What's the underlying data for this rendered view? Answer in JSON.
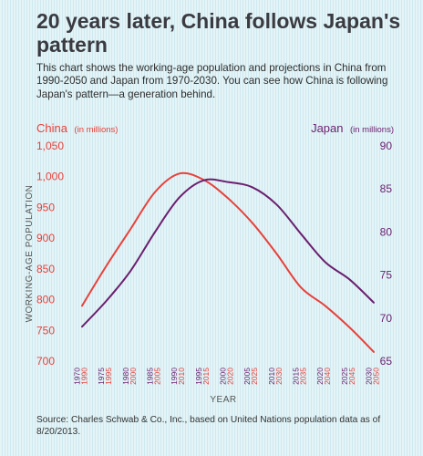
{
  "header": {
    "title": "20 years later, China follows Japan's pattern",
    "subtitle": "This chart shows the working-age population and projections in China from 1990-2050 and Japan from 1970-2030. You can see how China is following Japan's pattern—a generation behind."
  },
  "footer": {
    "source": "Source: Charles Schwab & Co., Inc., based on United Nations population data as of 8/20/2013."
  },
  "colors": {
    "china": "#e8413b",
    "japan": "#6b1f6e",
    "axis_text": "#555555"
  },
  "chart_data": {
    "type": "line",
    "xlabel": "YEAR",
    "ylabel": "WORKING-AGE POPULATION",
    "left_axis": {
      "name": "China",
      "unit": "(in millions)",
      "ticks": [
        "1,050",
        "1,000",
        "950",
        "900",
        "850",
        "800",
        "750",
        "700"
      ],
      "ylim": [
        700,
        1050
      ]
    },
    "right_axis": {
      "name": "Japan",
      "unit": "(in millions)",
      "ticks": [
        "90",
        "85",
        "80",
        "75",
        "70",
        "65"
      ],
      "ylim": [
        65,
        90
      ]
    },
    "x_ticks_japan": [
      "1970",
      "1975",
      "1980",
      "1985",
      "1990",
      "1995",
      "2000",
      "2005",
      "2010",
      "2015",
      "2020",
      "2025",
      "2030"
    ],
    "x_ticks_china": [
      "1990",
      "1995",
      "2000",
      "2005",
      "2010",
      "2015",
      "2020",
      "2025",
      "2030",
      "2035",
      "2040",
      "2045",
      "2050"
    ],
    "series": [
      {
        "name": "China",
        "axis": "left",
        "x": [
          1990,
          1995,
          2000,
          2005,
          2010,
          2015,
          2020,
          2025,
          2030,
          2035,
          2040,
          2045,
          2050
        ],
        "values": [
          790,
          855,
          915,
          975,
          1005,
          995,
          965,
          925,
          875,
          820,
          790,
          755,
          715
        ]
      },
      {
        "name": "Japan",
        "axis": "right",
        "x": [
          1970,
          1975,
          1980,
          1985,
          1990,
          1995,
          2000,
          2005,
          2010,
          2015,
          2020,
          2025,
          2030
        ],
        "values": [
          69.0,
          72.0,
          75.5,
          80.0,
          84.0,
          86.0,
          85.8,
          85.2,
          83.2,
          79.8,
          76.5,
          74.5,
          71.8
        ]
      }
    ]
  }
}
